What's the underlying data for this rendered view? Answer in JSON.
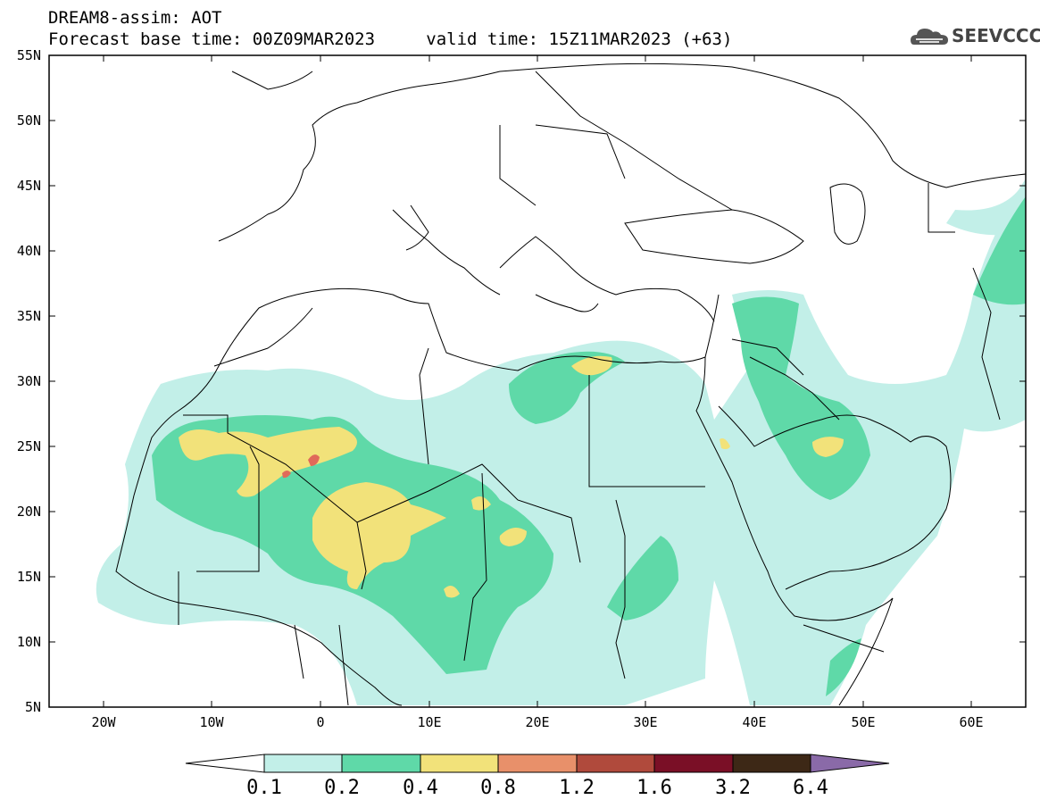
{
  "header": {
    "title": "DREAM8-assim: AOT",
    "base_time": "Forecast base time: 00Z09MAR2023",
    "valid_time": "valid time: 15Z11MAR2023 (+63)"
  },
  "logo": {
    "text": "SEEVCCC",
    "icon": "cloud-icon"
  },
  "map": {
    "lat_labels": [
      "55N",
      "50N",
      "45N",
      "40N",
      "35N",
      "30N",
      "25N",
      "20N",
      "15N",
      "10N",
      "5N"
    ],
    "lon_labels": [
      "20W",
      "10W",
      "0",
      "10E",
      "20E",
      "30E",
      "40E",
      "50E",
      "60E"
    ],
    "extent": {
      "lon_min": -25,
      "lon_max": 65,
      "lat_min": 5,
      "lat_max": 55
    }
  },
  "colorbar": {
    "labels": [
      "0.1",
      "0.2",
      "0.4",
      "0.8",
      "1.2",
      "1.6",
      "3.2",
      "6.4"
    ],
    "colors": [
      "#ffffff",
      "#c2efe8",
      "#5fd9a8",
      "#f2e27a",
      "#e8906a",
      "#b04a3c",
      "#7a0f26",
      "#3d2816",
      "#8a6aa8"
    ]
  },
  "field_colors": {
    "low": "#c2efe8",
    "mid": "#5fd9a8",
    "high": "#f2e27a",
    "peak": "#e06a5a"
  }
}
